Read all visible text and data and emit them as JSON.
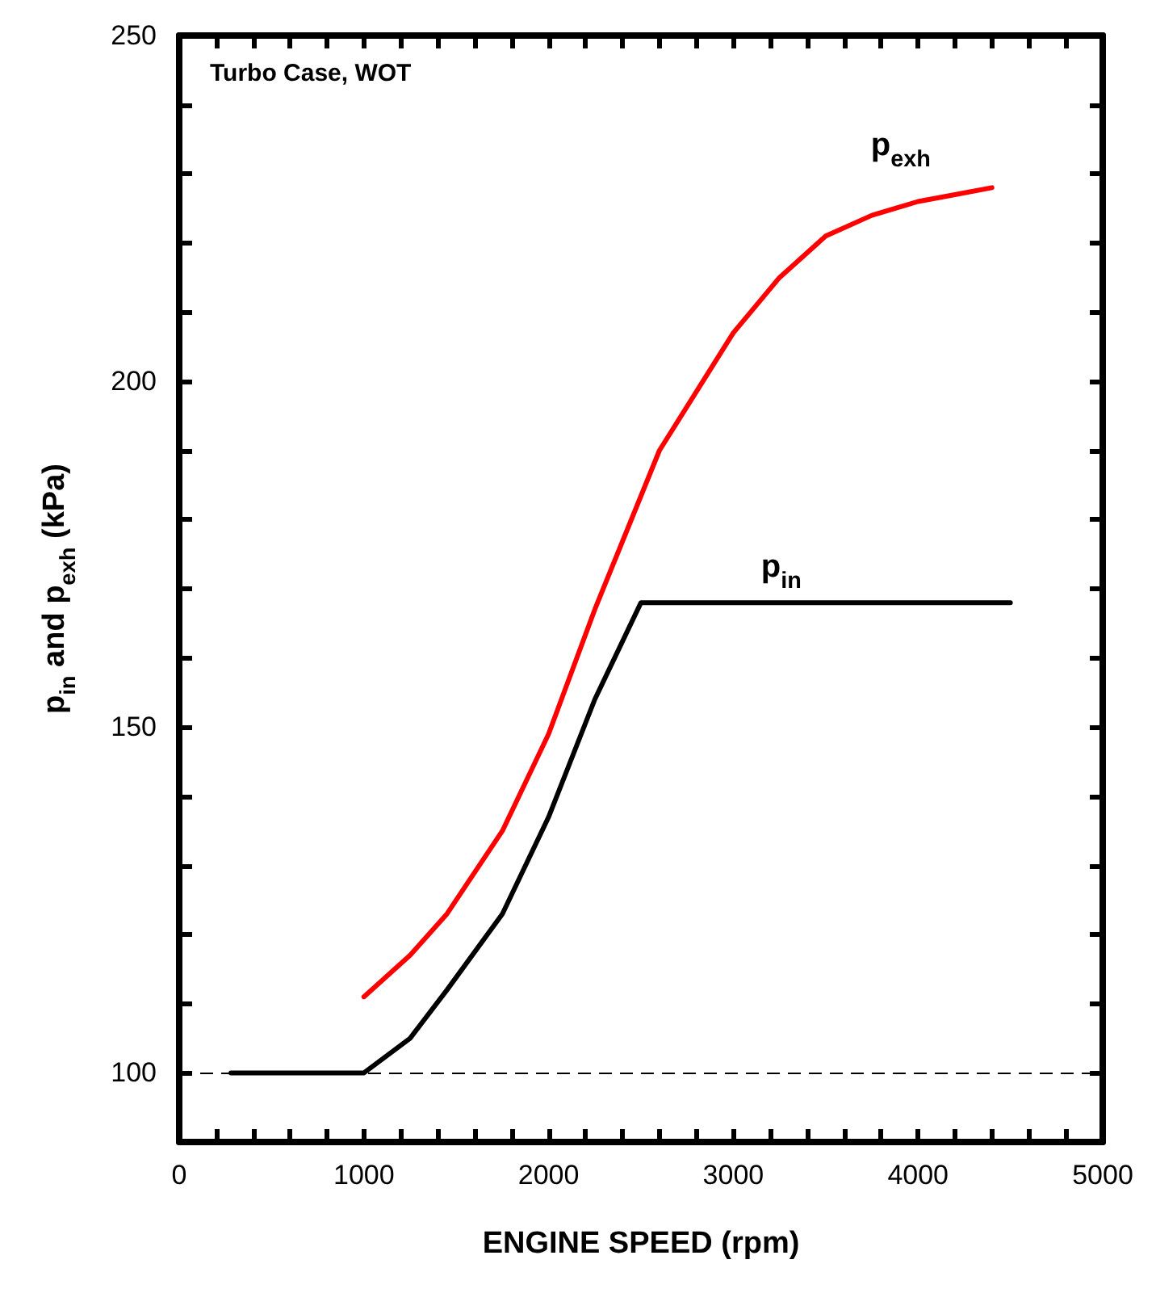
{
  "chart_data": {
    "type": "line",
    "xlabel": "ENGINE SPEED (rpm)",
    "ylabel": "p$_{in}$ and p$_{exh}$ (kPa)",
    "annotations": [
      "Turbo Case, WOT"
    ],
    "xlim": [
      0,
      5000
    ],
    "ylim": [
      90,
      250
    ],
    "xticks": [
      0,
      {
        "value": 200,
        "label": null
      },
      {
        "value": 400,
        "label": null
      },
      {
        "value": 600,
        "label": null
      },
      {
        "value": 800,
        "label": null
      },
      1000,
      {
        "value": 1200,
        "label": null
      },
      {
        "value": 1400,
        "label": null
      },
      {
        "value": 1600,
        "label": null
      },
      {
        "value": 1800,
        "label": null
      },
      2000,
      {
        "value": 2200,
        "label": null
      },
      {
        "value": 2400,
        "label": null
      },
      {
        "value": 2600,
        "label": null
      },
      {
        "value": 2800,
        "label": null
      },
      3000,
      {
        "value": 3200,
        "label": null
      },
      {
        "value": 3400,
        "label": null
      },
      {
        "value": 3600,
        "label": null
      },
      {
        "value": 3800,
        "label": null
      },
      4000,
      {
        "value": 4200,
        "label": null
      },
      {
        "value": 4400,
        "label": null
      },
      {
        "value": 4600,
        "label": null
      },
      {
        "value": 4800,
        "label": null
      },
      5000
    ],
    "yticks": [
      100,
      {
        "value": 110,
        "label": null
      },
      {
        "value": 120,
        "label": null
      },
      {
        "value": 130,
        "label": null
      },
      {
        "value": 140,
        "label": null
      },
      150,
      {
        "value": 160,
        "label": null
      },
      {
        "value": 170,
        "label": null
      },
      {
        "value": 180,
        "label": null
      },
      {
        "value": 190,
        "label": null
      },
      200,
      {
        "value": 210,
        "label": null
      },
      {
        "value": 220,
        "label": null
      },
      {
        "value": 230,
        "label": null
      },
      {
        "value": 240,
        "label": null
      },
      250
    ],
    "marker": "none",
    "ref_lines": [
      {
        "axis": "y",
        "value": 100,
        "label": null,
        "color": "#000000",
        "line_style": "dashed"
      }
    ],
    "series": [
      {
        "name": "p$_{exh}$",
        "color": "#ff0000",
        "x": [
          1000,
          1250,
          1450,
          1750,
          2000,
          2250,
          2600,
          3000,
          3250,
          3500,
          3750,
          4000,
          4200,
          4400
        ],
        "values": [
          111,
          117,
          123,
          135,
          149,
          167,
          190,
          207,
          215,
          221,
          224,
          226,
          227,
          228
        ]
      },
      {
        "name": "p$_{in}$",
        "color": "#000000",
        "x": [
          280,
          1000,
          1250,
          1450,
          1750,
          2000,
          2250,
          2500,
          3500,
          4500
        ],
        "values": [
          100,
          100,
          105,
          112,
          123,
          137,
          154,
          168,
          168,
          168
        ]
      }
    ]
  }
}
